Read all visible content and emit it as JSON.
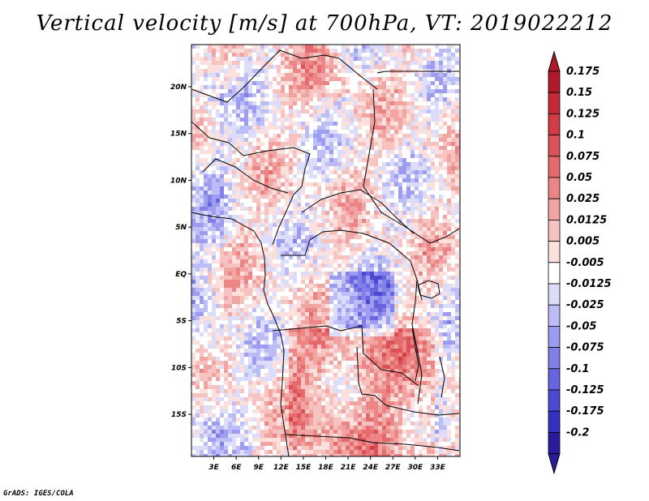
{
  "title": "Vertical velocity [m/s] at 700hPa, VT: 2019022212",
  "footer": "GrADS: IGES/COLA",
  "map": {
    "lon_range": [
      0,
      36
    ],
    "lat_range": [
      -19.5,
      24.5
    ],
    "lat_ticks": [
      {
        "label": "20N",
        "value": 20
      },
      {
        "label": "15N",
        "value": 15
      },
      {
        "label": "10N",
        "value": 10
      },
      {
        "label": "5N",
        "value": 5
      },
      {
        "label": "EQ",
        "value": 0
      },
      {
        "label": "5S",
        "value": -5
      },
      {
        "label": "10S",
        "value": -10
      },
      {
        "label": "15S",
        "value": -15
      }
    ],
    "lon_ticks": [
      {
        "label": "3E",
        "value": 3
      },
      {
        "label": "6E",
        "value": 6
      },
      {
        "label": "9E",
        "value": 9
      },
      {
        "label": "12E",
        "value": 12
      },
      {
        "label": "15E",
        "value": 15
      },
      {
        "label": "18E",
        "value": 18
      },
      {
        "label": "21E",
        "value": 21
      },
      {
        "label": "24E",
        "value": 24
      },
      {
        "label": "27E",
        "value": 27
      },
      {
        "label": "30E",
        "value": 30
      },
      {
        "label": "33E",
        "value": 33
      }
    ]
  },
  "colorbar": {
    "levels": [
      {
        "label": "0.175",
        "color": "#b2182b"
      },
      {
        "label": "0.15",
        "color": "#c42a36"
      },
      {
        "label": "0.125",
        "color": "#d23c44"
      },
      {
        "label": "0.1",
        "color": "#dc5156"
      },
      {
        "label": "0.075",
        "color": "#e56a6c"
      },
      {
        "label": "0.05",
        "color": "#ec8585"
      },
      {
        "label": "0.025",
        "color": "#f2a4a2"
      },
      {
        "label": "0.0125",
        "color": "#f7c3c0"
      },
      {
        "label": "0.005",
        "color": "#fbe0de"
      },
      {
        "label": "-0.005",
        "color": "#ffffff"
      },
      {
        "label": "-0.0125",
        "color": "#dcdcfb"
      },
      {
        "label": "-0.025",
        "color": "#bcbcf6"
      },
      {
        "label": "-0.05",
        "color": "#9e9cf0"
      },
      {
        "label": "-0.075",
        "color": "#8280e8"
      },
      {
        "label": "-0.1",
        "color": "#6664de"
      },
      {
        "label": "-0.125",
        "color": "#4c4ad2"
      },
      {
        "label": "-0.175",
        "color": "#3430c2"
      },
      {
        "label": "-0.2",
        "color": "#2a1a9e"
      }
    ],
    "top_triangle_color": "#b2182b",
    "bottom_triangle_color": "#2a1a9e"
  }
}
